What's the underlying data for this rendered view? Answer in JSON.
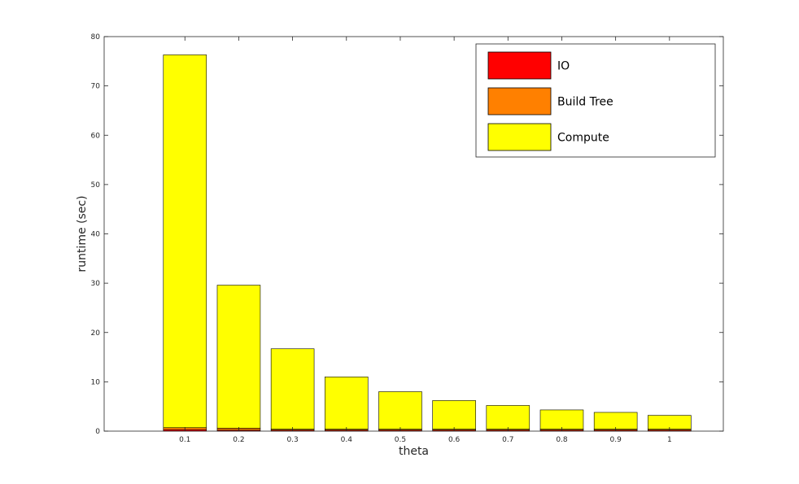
{
  "chart_data": {
    "type": "bar",
    "stacked": true,
    "title": "",
    "xlabel": "theta",
    "ylabel": "runtime (sec)",
    "categories": [
      "0.1",
      "0.2",
      "0.3",
      "0.4",
      "0.5",
      "0.6",
      "0.7",
      "0.8",
      "0.9",
      "1"
    ],
    "x": [
      0.1,
      0.2,
      0.3,
      0.4,
      0.5,
      0.6,
      0.7,
      0.8,
      0.9,
      1.0
    ],
    "xlim": [
      -0.05,
      1.1
    ],
    "ylim": [
      0,
      80
    ],
    "yticks": [
      0,
      10,
      20,
      30,
      40,
      50,
      60,
      70,
      80
    ],
    "grid": false,
    "legend": {
      "position": "top-right"
    },
    "series": [
      {
        "name": "IO",
        "color": "#ff0000",
        "values": [
          0.3,
          0.2,
          0.2,
          0.2,
          0.2,
          0.2,
          0.2,
          0.2,
          0.2,
          0.2
        ]
      },
      {
        "name": "Build Tree",
        "color": "#ff8000",
        "values": [
          0.4,
          0.4,
          0.2,
          0.2,
          0.2,
          0.2,
          0.2,
          0.2,
          0.2,
          0.2
        ]
      },
      {
        "name": "Compute",
        "color": "#ffff00",
        "values": [
          75.6,
          29.0,
          16.3,
          10.6,
          7.6,
          5.8,
          4.8,
          3.9,
          3.4,
          2.8
        ]
      }
    ]
  }
}
